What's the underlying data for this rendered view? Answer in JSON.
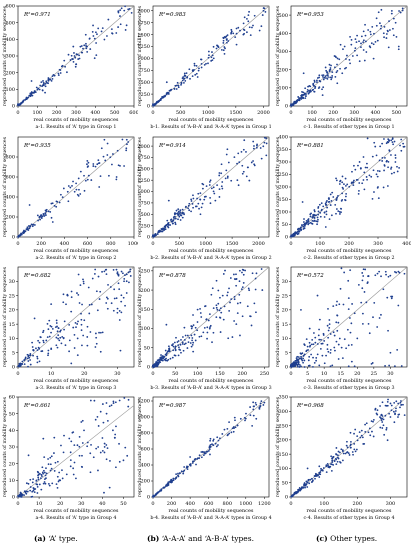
{
  "figure": {
    "columns": [
      {
        "tag": "(a)",
        "title": "‘A’ type."
      },
      {
        "tag": "(b)",
        "title": "‘A-A-A’ and ‘A-B-A’ types."
      },
      {
        "tag": "(c)",
        "title": "Other types."
      }
    ]
  },
  "colors": {
    "point": "#1f3f8f",
    "diagonal": "#9a9a9a",
    "axis": "#000000"
  },
  "chart_data": [
    {
      "id": "a1",
      "type": "scatter",
      "r2": "R²=0.971",
      "caption": "a-1. Results of ‘A’ type in Group 1",
      "xlabel": "real counts of mobility sequences",
      "ylabel": "reproduced counts of mobility sequences",
      "xlim": [
        0,
        600
      ],
      "ylim": [
        0,
        600
      ],
      "xticks": [
        0,
        100,
        200,
        300,
        400,
        500,
        600
      ],
      "yticks": [
        0,
        100,
        200,
        300,
        400,
        500,
        600
      ],
      "n": 160,
      "spread": 0.1,
      "skew": 1.7,
      "diagonal": true,
      "outliers": [
        [
          70,
          150
        ],
        [
          140,
          80
        ],
        [
          300,
          250
        ],
        [
          330,
          360
        ],
        [
          390,
          420
        ],
        [
          460,
          420
        ],
        [
          570,
          580
        ]
      ]
    },
    {
      "id": "b1",
      "type": "scatter",
      "r2": "R²=0.983",
      "caption": "b-1. Results of ‘A-B-A’ and ‘A-A-A’ types in Group 1",
      "xlabel": "real counts of mobility sequences",
      "ylabel": "reproduced counts of mobility sequences",
      "xlim": [
        0,
        2100
      ],
      "ylim": [
        0,
        2100
      ],
      "xticks": [
        0,
        500,
        1000,
        1500,
        2000
      ],
      "yticks": [
        0,
        250,
        500,
        750,
        1000,
        1250,
        1500,
        1750,
        2000
      ],
      "n": 170,
      "spread": 0.09,
      "skew": 1.6,
      "diagonal": true,
      "outliers": [
        [
          250,
          500
        ],
        [
          1100,
          1000
        ],
        [
          1300,
          1450
        ],
        [
          1700,
          1550
        ],
        [
          2000,
          2000
        ]
      ]
    },
    {
      "id": "c1",
      "type": "scatter",
      "r2": "R²=0.953",
      "caption": "c-1. Results of other types in Group 1",
      "xlabel": "real counts of mobility sequences",
      "ylabel": "reproduced counts of mobility sequences",
      "xlim": [
        0,
        550
      ],
      "ylim": [
        0,
        550
      ],
      "xticks": [
        0,
        100,
        200,
        300,
        400,
        500
      ],
      "yticks": [
        0,
        100,
        200,
        300,
        400,
        500
      ],
      "n": 230,
      "spread": 0.18,
      "skew": 2.0,
      "diagonal": true,
      "outliers": [
        [
          60,
          180
        ],
        [
          150,
          60
        ],
        [
          280,
          380
        ],
        [
          350,
          250
        ],
        [
          440,
          400
        ],
        [
          500,
          380
        ]
      ]
    },
    {
      "id": "a2",
      "type": "scatter",
      "r2": "R²=0.935",
      "caption": "a-2. Results of ‘A’ type in Group 2",
      "xlabel": "real counts of mobility sequences",
      "ylabel": "reproduced counts of mobility sequences",
      "xlim": [
        0,
        1000
      ],
      "ylim": [
        0,
        1000
      ],
      "xticks": [
        0,
        200,
        400,
        600,
        800,
        1000
      ],
      "yticks": [
        0,
        200,
        400,
        600,
        800
      ],
      "n": 130,
      "spread": 0.14,
      "skew": 1.9,
      "diagonal": true,
      "outliers": [
        [
          100,
          320
        ],
        [
          300,
          150
        ],
        [
          600,
          700
        ],
        [
          700,
          500
        ],
        [
          850,
          600
        ],
        [
          950,
          950
        ]
      ]
    },
    {
      "id": "b2",
      "type": "scatter",
      "r2": "R²=0.914",
      "caption": "b-2. Results of ‘A-B-A’ and ‘A-A-A’ types in Group 2",
      "xlabel": "real counts of mobility sequences",
      "ylabel": "reproduced counts of mobility sequences",
      "xlim": [
        0,
        2200
      ],
      "ylim": [
        0,
        2200
      ],
      "xticks": [
        0,
        500,
        1000,
        1500,
        2000
      ],
      "yticks": [
        0,
        250,
        500,
        750,
        1000,
        1250,
        1500,
        1750,
        2000
      ],
      "n": 200,
      "spread": 0.16,
      "skew": 1.9,
      "diagonal": true,
      "outliers": [
        [
          300,
          800
        ],
        [
          900,
          500
        ],
        [
          1300,
          1600
        ],
        [
          1600,
          1250
        ],
        [
          1900,
          2100
        ]
      ]
    },
    {
      "id": "c2",
      "type": "scatter",
      "r2": "R²=0.881",
      "caption": "c-2. Results of other types in Group 2",
      "xlabel": "real counts of mobility sequences",
      "ylabel": "reproduced counts of mobility sequences",
      "xlim": [
        0,
        400
      ],
      "ylim": [
        0,
        400
      ],
      "xticks": [
        0,
        100,
        200,
        300,
        400
      ],
      "yticks": [
        0,
        50,
        100,
        150,
        200,
        250,
        300,
        350,
        400
      ],
      "n": 260,
      "spread": 0.22,
      "skew": 1.7,
      "diagonal": true,
      "outliers": [
        [
          40,
          140
        ],
        [
          120,
          40
        ],
        [
          250,
          320
        ],
        [
          300,
          200
        ],
        [
          360,
          300
        ],
        [
          380,
          390
        ]
      ]
    },
    {
      "id": "a3",
      "type": "scatter",
      "r2": "R²=0.682",
      "caption": "a-3. Results of ‘A’ type in Group 3",
      "xlabel": "real counts of mobility sequences",
      "ylabel": "reproduced counts of mobility sequences",
      "xlim": [
        0,
        35
      ],
      "ylim": [
        0,
        35
      ],
      "xticks": [
        0,
        10,
        20,
        30
      ],
      "yticks": [
        0,
        5,
        10,
        15,
        20,
        25,
        30
      ],
      "n": 200,
      "spread": 0.42,
      "skew": 1.3,
      "diagonal": true,
      "outliers": [
        [
          5,
          17
        ],
        [
          10,
          22
        ],
        [
          18,
          10
        ],
        [
          25,
          12
        ],
        [
          30,
          19
        ],
        [
          28,
          28
        ],
        [
          32,
          30
        ],
        [
          15,
          25
        ]
      ]
    },
    {
      "id": "b3",
      "type": "scatter",
      "r2": "R²=0.878",
      "caption": "b-3. Results of ‘A-B-A’ and ‘A-A-A’ types in Group 3",
      "xlabel": "real counts of mobility sequences",
      "ylabel": "reproduced counts of mobility sequences",
      "xlim": [
        0,
        260
      ],
      "ylim": [
        0,
        260
      ],
      "xticks": [
        0,
        50,
        100,
        150,
        200,
        250
      ],
      "yticks": [
        0,
        50,
        100,
        150,
        200,
        250
      ],
      "n": 260,
      "spread": 0.28,
      "skew": 2.0,
      "diagonal": true,
      "outliers": [
        [
          30,
          110
        ],
        [
          90,
          40
        ],
        [
          150,
          180
        ],
        [
          190,
          140
        ],
        [
          230,
          230
        ],
        [
          245,
          200
        ]
      ]
    },
    {
      "id": "c3",
      "type": "scatter",
      "r2": "R²=0.572",
      "caption": "c-3. Results of other types in Group 3",
      "xlabel": "real counts of mobility sequences",
      "ylabel": "reproduced counts of mobility sequences",
      "xlim": [
        0,
        35
      ],
      "ylim": [
        0,
        35
      ],
      "xticks": [
        0,
        5,
        10,
        15,
        20,
        25,
        30
      ],
      "yticks": [
        0,
        5,
        10,
        15,
        20,
        25,
        30
      ],
      "n": 260,
      "spread": 0.55,
      "skew": 2.4,
      "diagonal": true,
      "outliers": [
        [
          3,
          20
        ],
        [
          8,
          25
        ],
        [
          12,
          6
        ],
        [
          20,
          10
        ],
        [
          26,
          14
        ],
        [
          30,
          5
        ],
        [
          14,
          18
        ]
      ]
    },
    {
      "id": "a4",
      "type": "scatter",
      "r2": "R²=0.661",
      "caption": "a-4. Results of ‘A’ type in Group 4",
      "xlabel": "real counts of mobility sequences",
      "ylabel": "reproduced counts of mobility sequences",
      "xlim": [
        0,
        55
      ],
      "ylim": [
        0,
        60
      ],
      "xticks": [
        0,
        10,
        20,
        30,
        40,
        50
      ],
      "yticks": [
        0,
        10,
        20,
        30,
        40,
        50,
        60
      ],
      "n": 170,
      "spread": 0.45,
      "skew": 1.4,
      "diagonal": true,
      "outliers": [
        [
          5,
          25
        ],
        [
          12,
          35
        ],
        [
          20,
          10
        ],
        [
          30,
          45
        ],
        [
          38,
          30
        ],
        [
          45,
          40
        ],
        [
          50,
          22
        ],
        [
          42,
          50
        ]
      ]
    },
    {
      "id": "b4",
      "type": "scatter",
      "r2": "R²=0.987",
      "caption": "b-4. Results of ‘A-B-A’ and ‘A-A-A’ types in Group 4",
      "xlabel": "real counts of mobility sequences",
      "ylabel": "reproduced counts of mobility sequences",
      "xlim": [
        0,
        1250
      ],
      "ylim": [
        0,
        1250
      ],
      "xticks": [
        0,
        200,
        400,
        600,
        800,
        1000,
        1200
      ],
      "yticks": [
        0,
        200,
        400,
        600,
        800,
        1000,
        1200
      ],
      "n": 170,
      "spread": 0.07,
      "skew": 1.5,
      "diagonal": true,
      "outliers": [
        [
          400,
          500
        ],
        [
          700,
          650
        ],
        [
          1000,
          980
        ],
        [
          1200,
          1180
        ]
      ]
    },
    {
      "id": "c4",
      "type": "scatter",
      "r2": "R²=0.968",
      "caption": "c-4. Results of other types in Group 4",
      "xlabel": "real counts of mobility sequences",
      "ylabel": "reproduced counts of mobility sequences",
      "xlim": [
        0,
        350
      ],
      "ylim": [
        0,
        350
      ],
      "xticks": [
        0,
        100,
        200,
        300
      ],
      "yticks": [
        0,
        50,
        100,
        150,
        200,
        250,
        300,
        350
      ],
      "n": 230,
      "spread": 0.12,
      "skew": 1.6,
      "diagonal": true,
      "outliers": [
        [
          50,
          100
        ],
        [
          150,
          120
        ],
        [
          250,
          270
        ],
        [
          300,
          280
        ],
        [
          330,
          330
        ]
      ]
    }
  ]
}
